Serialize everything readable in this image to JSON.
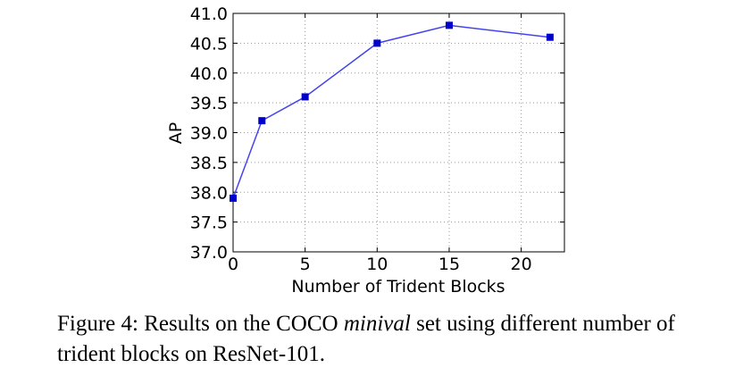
{
  "chart_data": {
    "type": "line",
    "x": [
      0,
      2,
      5,
      10,
      15,
      22
    ],
    "series": [
      {
        "values": [
          37.9,
          39.2,
          39.6,
          40.5,
          40.8,
          40.6
        ]
      }
    ],
    "xlabel": "Number of Trident Blocks",
    "ylabel": "AP",
    "xlim": [
      0,
      23
    ],
    "ylim": [
      37.0,
      41.0
    ],
    "xticks": [
      0,
      5,
      10,
      15,
      20
    ],
    "yticks": [
      37.0,
      37.5,
      38.0,
      38.5,
      39.0,
      39.5,
      40.0,
      40.5,
      41.0
    ],
    "grid": true,
    "line_color": "#4444ee",
    "marker_color": "#0000cc"
  },
  "caption": {
    "prefix": "Figure 4: Results on the COCO ",
    "italic": "minival",
    "suffix": " set using different number of trident blocks on ResNet-101."
  }
}
